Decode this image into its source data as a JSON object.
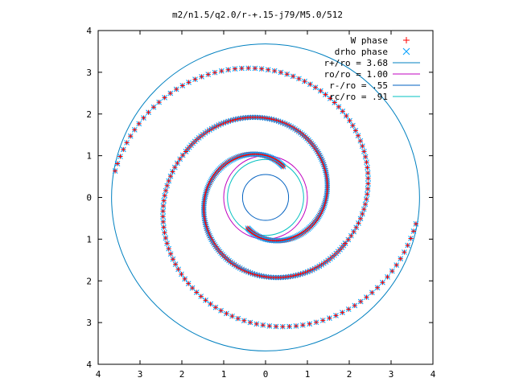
{
  "chart_data": {
    "type": "scatter",
    "title": "m2/n1.5/q2.0/r-+.15-j79/M5.0/512",
    "xlim": [
      -4,
      4
    ],
    "ylim": [
      -4,
      4
    ],
    "x_tick_labels": [
      "4",
      "3",
      "2",
      "1",
      "0",
      "1",
      "2",
      "3",
      "4"
    ],
    "y_tick_labels": [
      "4",
      "3",
      "2",
      "1",
      "0",
      "1",
      "2",
      "3",
      "4"
    ],
    "tick_values": [
      -4,
      -3,
      -2,
      -1,
      0,
      1,
      2,
      3,
      4
    ],
    "grid": false,
    "legend_position": "top-right",
    "series": [
      {
        "name": "W phase",
        "marker": "plus",
        "color": "#ff0000"
      },
      {
        "name": "drho phase",
        "marker": "cross",
        "color": "#00a0ff"
      }
    ],
    "circles": [
      {
        "name": "r+/ro = 3.68",
        "radius": 3.68,
        "color": "#0080c0"
      },
      {
        "name": "ro/ro = 1.00",
        "radius": 1.0,
        "color": "#c000c0"
      },
      {
        "name": "r-/ro = .55",
        "radius": 0.55,
        "color": "#0060c0"
      },
      {
        "name": "rc/ro = .91",
        "radius": 0.91,
        "color": "#00c0c0"
      }
    ],
    "spiral_arm_phase_offsets": [
      0,
      180
    ],
    "inner_arm_radius_range": [
      0.85,
      2.2
    ],
    "outer_arm_radius_range": [
      2.2,
      3.65
    ]
  }
}
